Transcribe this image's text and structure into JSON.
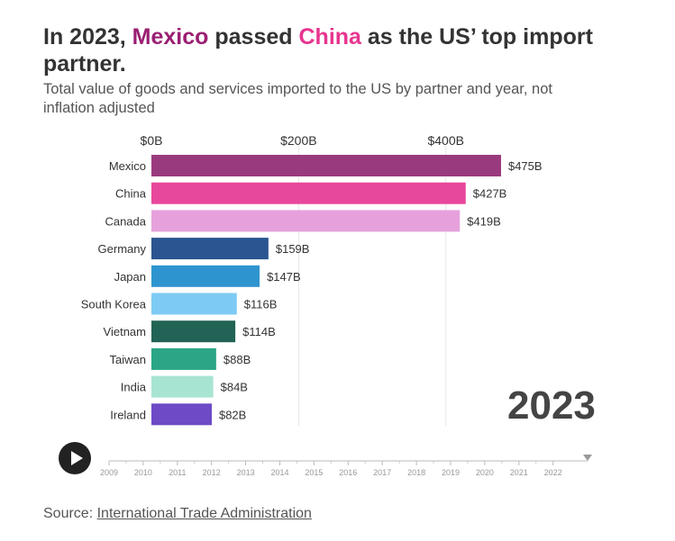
{
  "title": {
    "part1": "In 2023, ",
    "highlight1": "Mexico",
    "part2": " passed ",
    "highlight2": "China",
    "part3": " as the US’ top import partner."
  },
  "subtitle": "Total value of goods and services imported to the US by partner and year, not inflation adjusted",
  "current_year": "2023",
  "source": {
    "prefix": "Source: ",
    "link_text": "International Trade Administration"
  },
  "timeline": {
    "years": [
      "2009",
      "2010",
      "2011",
      "2012",
      "2013",
      "2014",
      "2015",
      "2016",
      "2017",
      "2018",
      "2019",
      "2020",
      "2021",
      "2022"
    ],
    "current": "2023"
  },
  "chart_data": {
    "type": "bar",
    "orientation": "horizontal",
    "title": "In 2023, Mexico passed China as the US’ top import partner.",
    "xlabel": "",
    "ylabel": "",
    "xlim": [
      0,
      500
    ],
    "x_ticks": [
      0,
      200,
      400
    ],
    "x_tick_labels": [
      "$0B",
      "$200B",
      "$400B"
    ],
    "grid": true,
    "categories": [
      "Mexico",
      "China",
      "Canada",
      "Germany",
      "Japan",
      "South Korea",
      "Vietnam",
      "Taiwan",
      "India",
      "Ireland"
    ],
    "values": [
      475,
      427,
      419,
      159,
      147,
      116,
      114,
      88,
      84,
      82
    ],
    "value_labels": [
      "$475B",
      "$427B",
      "$419B",
      "$159B",
      "$147B",
      "$116B",
      "$114B",
      "$88B",
      "$84B",
      "$82B"
    ],
    "colors": [
      "#9a3a7e",
      "#e8489b",
      "#e6a1dc",
      "#2b5591",
      "#2e94cf",
      "#7dcbf5",
      "#216355",
      "#2aa585",
      "#a8e4d2",
      "#6e4ac6"
    ]
  }
}
